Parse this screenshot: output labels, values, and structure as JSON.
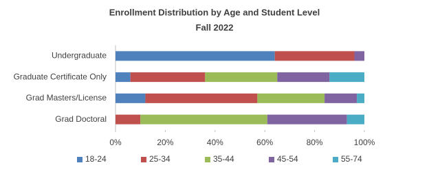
{
  "chart_data": {
    "type": "stacked_bar_horizontal",
    "title": "Enrollment Distribution by Age and Student Level",
    "subtitle": "Fall 2022",
    "categories": [
      "Undergraduate",
      "Graduate Certificate Only",
      "Grad Masters/License",
      "Grad Doctoral"
    ],
    "series": [
      {
        "name": "18-24",
        "color": "#4f81bd",
        "values": [
          64,
          6,
          12,
          0
        ]
      },
      {
        "name": "25-34",
        "color": "#c0504d",
        "values": [
          32,
          30,
          45,
          10
        ]
      },
      {
        "name": "35-44",
        "color": "#9bbb59",
        "values": [
          0,
          29,
          27,
          51
        ]
      },
      {
        "name": "45-54",
        "color": "#8064a2",
        "values": [
          4,
          21,
          13,
          32
        ]
      },
      {
        "name": "55-74",
        "color": "#4bacc6",
        "values": [
          0,
          14,
          3,
          7
        ]
      }
    ],
    "xlim": [
      0,
      100
    ],
    "xticks": [
      {
        "value": 0,
        "label": "0%"
      },
      {
        "value": 20,
        "label": "20%"
      },
      {
        "value": 40,
        "label": "40%"
      },
      {
        "value": 60,
        "label": "60%"
      },
      {
        "value": 80,
        "label": "80%"
      },
      {
        "value": 100,
        "label": "100%"
      }
    ],
    "legend": "bottom"
  }
}
